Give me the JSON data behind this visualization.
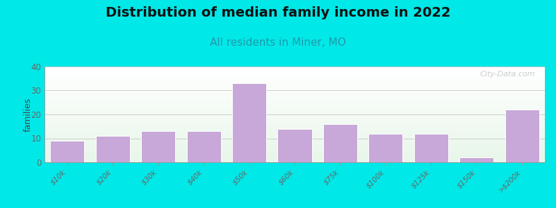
{
  "title": "Distribution of median family income in 2022",
  "subtitle": "All residents in Miner, MO",
  "categories": [
    "$10k",
    "$20k",
    "$30k",
    "$40k",
    "$50k",
    "$60k",
    "$75k",
    "$100k",
    "$125k",
    "$150k",
    ">$200k"
  ],
  "values": [
    9,
    11,
    13,
    13,
    33,
    14,
    16,
    12,
    12,
    2,
    22
  ],
  "bar_color": "#c8a8d8",
  "bar_edgecolor": "#ffffff",
  "ylabel": "families",
  "ylim": [
    0,
    40
  ],
  "yticks": [
    0,
    10,
    20,
    30,
    40
  ],
  "background_outer": "#00e8e8",
  "background_inner_topleft": "#d8ecc8",
  "background_inner_right": "#e8f0f0",
  "background_inner_bottom": "#f8fff8",
  "title_fontsize": 14,
  "subtitle_fontsize": 11,
  "subtitle_color": "#2299aa",
  "watermark": "City-Data.com",
  "grid_color": "#cccccc",
  "tick_color": "#666666",
  "spine_color": "#999999"
}
